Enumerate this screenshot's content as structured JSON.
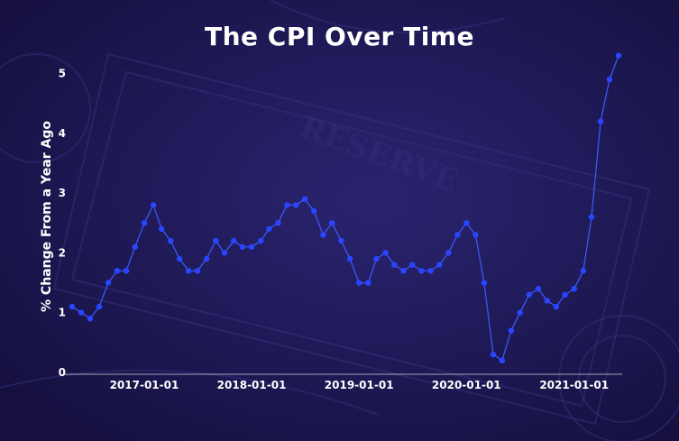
{
  "colors": {
    "background": "#1b1652",
    "line": "#3c5cff",
    "point": "#2a45ff",
    "text": "#ffffff"
  },
  "chart_data": {
    "type": "line",
    "title": "The CPI Over Time",
    "xlabel": "",
    "ylabel": "% Change From a Year Ago",
    "x_ticks": [
      "2017-01-01",
      "2018-01-01",
      "2019-01-01",
      "2020-01-01",
      "2021-01-01"
    ],
    "y_ticks": [
      0,
      1,
      2,
      3,
      4,
      5
    ],
    "ylim": [
      0,
      5.4
    ],
    "xlim": [
      "2016-05-01",
      "2021-06-01"
    ],
    "grid": false,
    "legend": "none",
    "x": [
      "2016-05-01",
      "2016-06-01",
      "2016-07-01",
      "2016-08-01",
      "2016-09-01",
      "2016-10-01",
      "2016-11-01",
      "2016-12-01",
      "2017-01-01",
      "2017-02-01",
      "2017-03-01",
      "2017-04-01",
      "2017-05-01",
      "2017-06-01",
      "2017-07-01",
      "2017-08-01",
      "2017-09-01",
      "2017-10-01",
      "2017-11-01",
      "2017-12-01",
      "2018-01-01",
      "2018-02-01",
      "2018-03-01",
      "2018-04-01",
      "2018-05-01",
      "2018-06-01",
      "2018-07-01",
      "2018-08-01",
      "2018-09-01",
      "2018-10-01",
      "2018-11-01",
      "2018-12-01",
      "2019-01-01",
      "2019-02-01",
      "2019-03-01",
      "2019-04-01",
      "2019-05-01",
      "2019-06-01",
      "2019-07-01",
      "2019-08-01",
      "2019-09-01",
      "2019-10-01",
      "2019-11-01",
      "2019-12-01",
      "2020-01-01",
      "2020-02-01",
      "2020-03-01",
      "2020-04-01",
      "2020-05-01",
      "2020-06-01",
      "2020-07-01",
      "2020-08-01",
      "2020-09-01",
      "2020-10-01",
      "2020-11-01",
      "2020-12-01",
      "2021-01-01",
      "2021-02-01",
      "2021-03-01",
      "2021-04-01",
      "2021-05-01",
      "2021-06-01"
    ],
    "series": [
      {
        "values": [
          1.1,
          1.0,
          0.9,
          1.1,
          1.5,
          1.7,
          1.7,
          2.1,
          2.5,
          2.8,
          2.4,
          2.2,
          1.9,
          1.7,
          1.7,
          1.9,
          2.2,
          2.0,
          2.2,
          2.1,
          2.1,
          2.2,
          2.4,
          2.5,
          2.8,
          2.8,
          2.9,
          2.7,
          2.3,
          2.5,
          2.2,
          1.9,
          1.5,
          1.5,
          1.9,
          2.0,
          1.8,
          1.7,
          1.8,
          1.7,
          1.7,
          1.8,
          2.0,
          2.3,
          2.5,
          2.3,
          1.5,
          0.3,
          0.2,
          0.7,
          1.0,
          1.3,
          1.4,
          1.2,
          1.1,
          1.3,
          1.4,
          1.7,
          2.6,
          4.2,
          4.9,
          5.3
        ]
      }
    ]
  }
}
